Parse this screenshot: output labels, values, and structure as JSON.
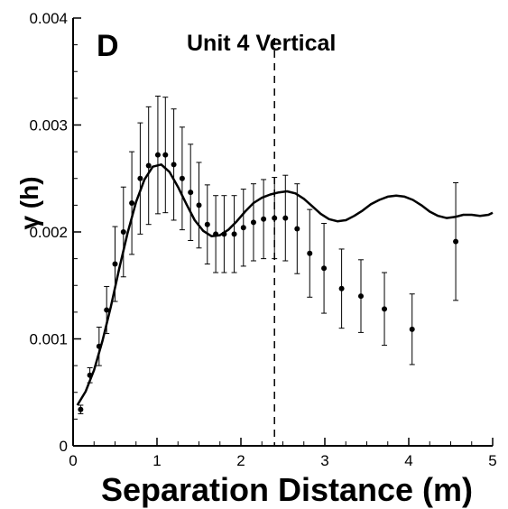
{
  "chart_data": {
    "type": "scatter",
    "panel_label": "D",
    "title": "Unit 4 Vertical",
    "xlabel": "Separation Distance (m)",
    "ylabel": "γ (h)",
    "xlim": [
      0,
      5
    ],
    "ylim": [
      0,
      0.004
    ],
    "x_ticks": [
      "0",
      "1",
      "2",
      "3",
      "4",
      "5"
    ],
    "y_ticks": [
      "0",
      "0.001",
      "0.002",
      "0.003",
      "0.004"
    ],
    "grid": false,
    "series": [
      {
        "kind": "points_with_error_bars",
        "x": [
          0.09,
          0.2,
          0.31,
          0.4,
          0.5,
          0.6,
          0.7,
          0.8,
          0.9,
          1.01,
          1.1,
          1.2,
          1.3,
          1.4,
          1.5,
          1.6,
          1.7,
          1.8,
          1.92,
          2.03,
          2.15,
          2.27,
          2.4,
          2.53,
          2.67,
          2.82,
          2.99,
          3.2,
          3.43,
          3.71,
          4.04,
          4.56
        ],
        "y": [
          0.00034,
          0.00066,
          0.00093,
          0.00127,
          0.0017,
          0.002,
          0.00227,
          0.0025,
          0.00262,
          0.00272,
          0.00272,
          0.00263,
          0.0025,
          0.00237,
          0.00225,
          0.00207,
          0.00198,
          0.00198,
          0.00198,
          0.00204,
          0.00209,
          0.00212,
          0.00213,
          0.00213,
          0.00203,
          0.0018,
          0.00166,
          0.00147,
          0.0014,
          0.00128,
          0.00109,
          0.00191
        ],
        "err": [
          4e-05,
          7e-05,
          0.00018,
          0.00022,
          0.00035,
          0.00042,
          0.00048,
          0.00052,
          0.00055,
          0.00055,
          0.00054,
          0.00052,
          0.00048,
          0.00045,
          0.0004,
          0.00037,
          0.00036,
          0.00036,
          0.00036,
          0.00036,
          0.00036,
          0.00037,
          0.00038,
          0.0004,
          0.00042,
          0.00041,
          0.00042,
          0.00037,
          0.00034,
          0.00034,
          0.00033,
          0.00055
        ]
      },
      {
        "kind": "model_curve",
        "x": [
          0.05,
          0.15,
          0.25,
          0.35,
          0.45,
          0.55,
          0.65,
          0.75,
          0.85,
          0.95,
          1.05,
          1.15,
          1.25,
          1.35,
          1.45,
          1.55,
          1.65,
          1.75,
          1.85,
          1.95,
          2.05,
          2.15,
          2.25,
          2.35,
          2.45,
          2.55,
          2.65,
          2.75,
          2.85,
          2.95,
          3.05,
          3.15,
          3.25,
          3.35,
          3.45,
          3.55,
          3.65,
          3.75,
          3.85,
          3.95,
          4.05,
          4.15,
          4.25,
          4.35,
          4.45,
          4.55,
          4.65,
          4.75,
          4.85,
          4.95,
          5.0
        ],
        "y": [
          0.00038,
          0.00051,
          0.00071,
          0.00098,
          0.0013,
          0.00166,
          0.00199,
          0.00228,
          0.00249,
          0.00261,
          0.00263,
          0.00256,
          0.00242,
          0.00226,
          0.00211,
          0.00201,
          0.00196,
          0.00197,
          0.00202,
          0.0021,
          0.00219,
          0.00227,
          0.00232,
          0.00235,
          0.00237,
          0.00238,
          0.00236,
          0.00231,
          0.00224,
          0.00217,
          0.00212,
          0.0021,
          0.00211,
          0.00215,
          0.0022,
          0.00226,
          0.0023,
          0.00233,
          0.00234,
          0.00233,
          0.0023,
          0.00225,
          0.00219,
          0.00215,
          0.00213,
          0.00214,
          0.00216,
          0.00216,
          0.00215,
          0.00216,
          0.00218
        ]
      }
    ],
    "vertical_reference_line": {
      "x": 2.4,
      "style": "dashed"
    }
  }
}
